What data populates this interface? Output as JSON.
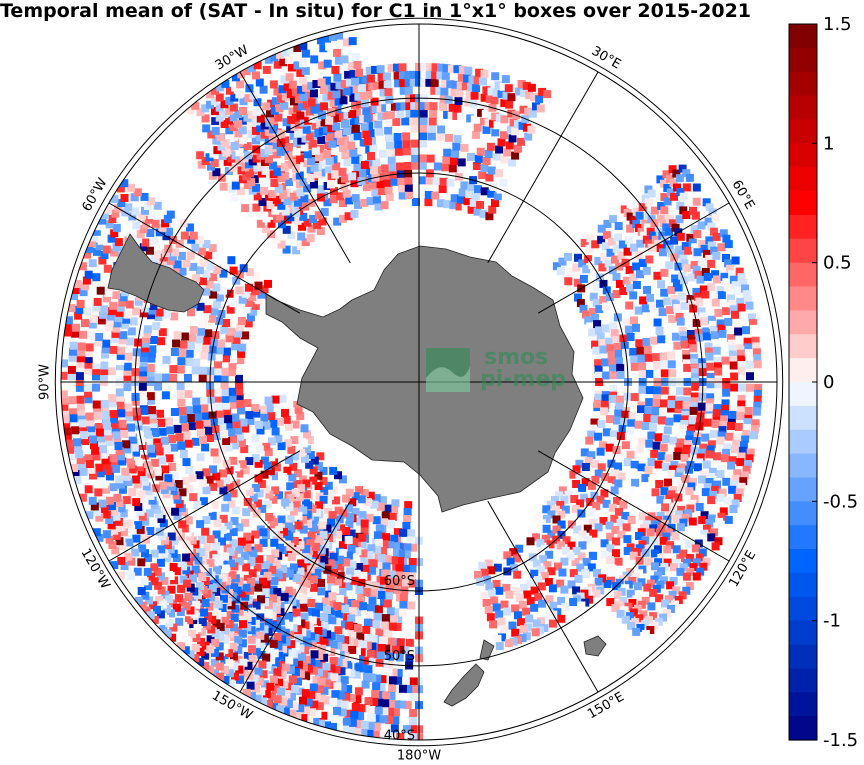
{
  "title": "Temporal mean of (SAT - In situ) for C1 in 1°x1° boxes over 2015-2021",
  "map": {
    "projection": "south-polar-stereographic",
    "longitude_labels": [
      {
        "text": "30°W",
        "lon": -30
      },
      {
        "text": "30°E",
        "lon": 30
      },
      {
        "text": "60°W",
        "lon": -60
      },
      {
        "text": "60°E",
        "lon": 60
      },
      {
        "text": "90°W",
        "lon": -90
      },
      {
        "text": "120°W",
        "lon": -120
      },
      {
        "text": "120°E",
        "lon": 120
      },
      {
        "text": "150°W",
        "lon": -150
      },
      {
        "text": "150°E",
        "lon": 150
      },
      {
        "text": "180°W",
        "lon": 180
      }
    ],
    "latitude_labels": [
      {
        "text": "60°S",
        "lat": -60
      },
      {
        "text": "50°S",
        "lat": -50
      },
      {
        "text": "40°S",
        "lat": -40
      }
    ],
    "land_color": "#7f7f7f",
    "colormap": "blue-white-red"
  },
  "colorbar": {
    "min": -1.5,
    "max": 1.5,
    "tick_labels": [
      {
        "text": "1.5",
        "value": 1.5
      },
      {
        "text": "1",
        "value": 1
      },
      {
        "text": "0.5",
        "value": 0.5
      },
      {
        "text": "0",
        "value": 0
      },
      {
        "text": "-0.5",
        "value": -0.5
      },
      {
        "text": "-1",
        "value": -1
      },
      {
        "text": "-1.5",
        "value": -1.5
      }
    ]
  },
  "logo": {
    "line1": "smos",
    "line2": "pi-mep"
  }
}
